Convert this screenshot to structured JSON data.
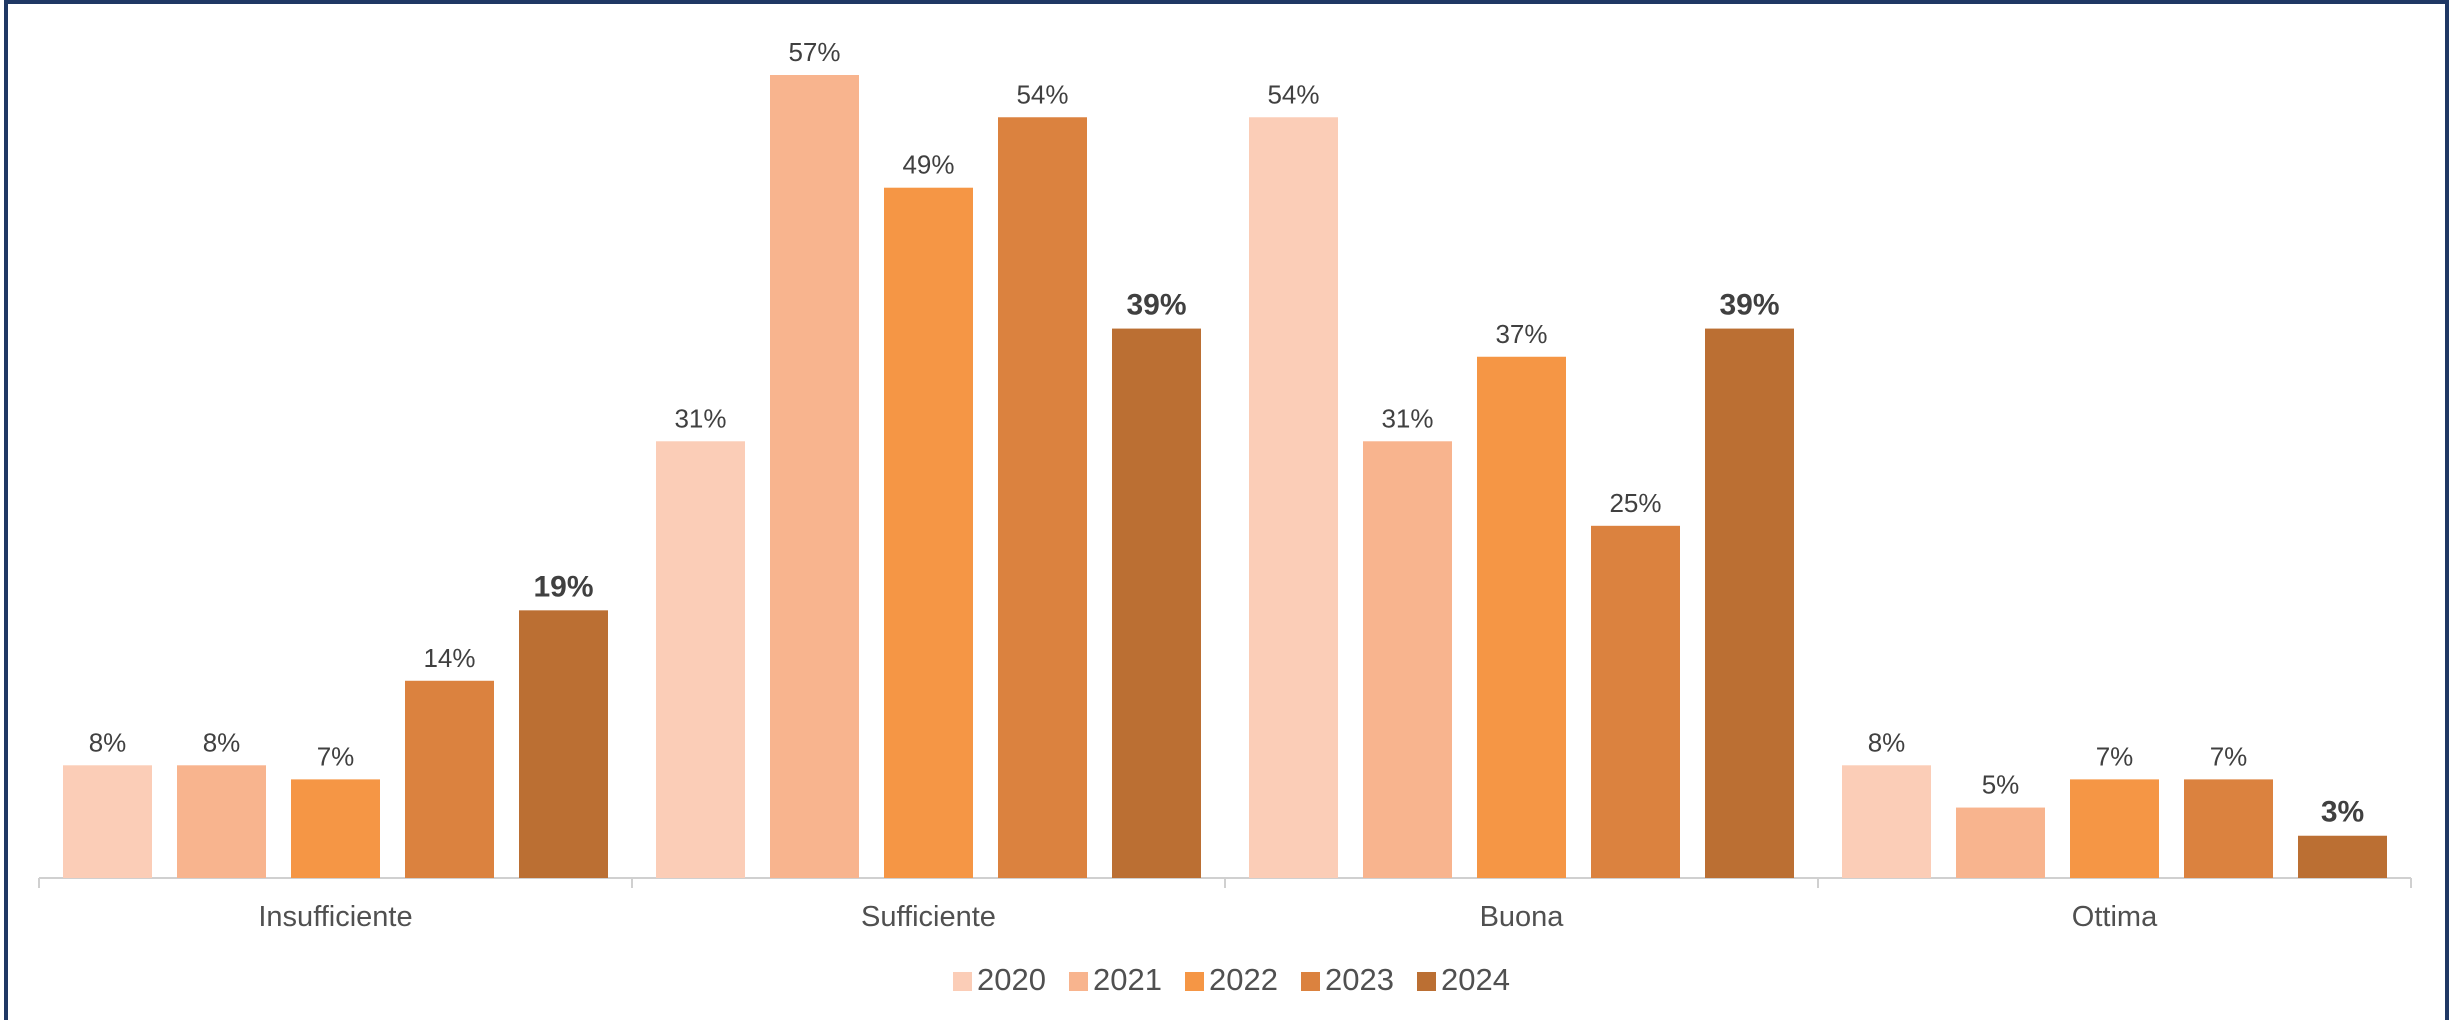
{
  "chart_data": {
    "type": "bar",
    "categories": [
      "Insufficiente",
      "Sufficiente",
      "Buona",
      "Ottima"
    ],
    "series": [
      {
        "name": "2020",
        "color": "#fbcdb7",
        "values": [
          8,
          31,
          54,
          8
        ],
        "value_labels": [
          "8%",
          "31%",
          "54%",
          "8%"
        ]
      },
      {
        "name": "2021",
        "color": "#f8b48e",
        "values": [
          8,
          57,
          31,
          5
        ],
        "value_labels": [
          "8%",
          "57%",
          "31%",
          "5%"
        ]
      },
      {
        "name": "2022",
        "color": "#f59645",
        "values": [
          7,
          49,
          37,
          7
        ],
        "value_labels": [
          "7%",
          "49%",
          "37%",
          "7%"
        ]
      },
      {
        "name": "2023",
        "color": "#db823f",
        "values": [
          14,
          54,
          25,
          7
        ],
        "value_labels": [
          "14%",
          "54%",
          "25%",
          "7%"
        ]
      },
      {
        "name": "2024",
        "color": "#bb6f33",
        "values": [
          19,
          39,
          39,
          3
        ],
        "value_labels": [
          "19%",
          "39%",
          "39%",
          "3%"
        ]
      }
    ],
    "legend": "bottom"
  }
}
